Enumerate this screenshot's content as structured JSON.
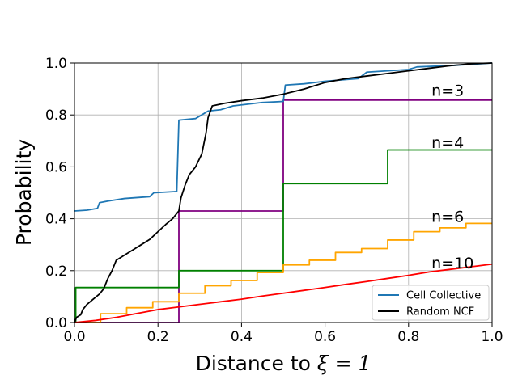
{
  "chart_data": {
    "type": "line",
    "title": "",
    "xlabel_prefix": "Distance to ",
    "xlabel_math": "ξ = 1",
    "ylabel": "Probability",
    "xlim": [
      0,
      1
    ],
    "ylim": [
      0,
      1
    ],
    "xticks": [
      "0.0",
      "0.2",
      "0.4",
      "0.6",
      "0.8",
      "1.0"
    ],
    "yticks": [
      "0.0",
      "0.2",
      "0.4",
      "0.6",
      "0.8",
      "1.0"
    ],
    "grid": true,
    "legend_position": "bottom-right",
    "annotations": [
      {
        "text": "n=3",
        "x": 0.855,
        "y": 0.895
      },
      {
        "text": "n=4",
        "x": 0.855,
        "y": 0.695
      },
      {
        "text": "n=6",
        "x": 0.855,
        "y": 0.41
      },
      {
        "text": "n=10",
        "x": 0.855,
        "y": 0.23
      }
    ],
    "series": [
      {
        "name": "Cell Collective",
        "legend": true,
        "color": "#1f77b4",
        "points": [
          [
            0,
            0.43
          ],
          [
            0.03,
            0.433
          ],
          [
            0.055,
            0.44
          ],
          [
            0.06,
            0.462
          ],
          [
            0.08,
            0.468
          ],
          [
            0.12,
            0.478
          ],
          [
            0.18,
            0.485
          ],
          [
            0.19,
            0.5
          ],
          [
            0.245,
            0.505
          ],
          [
            0.25,
            0.78
          ],
          [
            0.29,
            0.786
          ],
          [
            0.32,
            0.815
          ],
          [
            0.35,
            0.82
          ],
          [
            0.38,
            0.835
          ],
          [
            0.45,
            0.848
          ],
          [
            0.5,
            0.852
          ],
          [
            0.505,
            0.915
          ],
          [
            0.55,
            0.92
          ],
          [
            0.6,
            0.93
          ],
          [
            0.68,
            0.94
          ],
          [
            0.7,
            0.965
          ],
          [
            0.75,
            0.97
          ],
          [
            0.8,
            0.975
          ],
          [
            0.82,
            0.985
          ],
          [
            0.9,
            0.99
          ],
          [
            0.95,
            0.995
          ],
          [
            1.0,
            1.0
          ]
        ]
      },
      {
        "name": "Random NCF",
        "legend": true,
        "color": "#000000",
        "points": [
          [
            0,
            0.0
          ],
          [
            0.005,
            0.02
          ],
          [
            0.015,
            0.03
          ],
          [
            0.02,
            0.05
          ],
          [
            0.03,
            0.07
          ],
          [
            0.045,
            0.09
          ],
          [
            0.06,
            0.11
          ],
          [
            0.07,
            0.13
          ],
          [
            0.08,
            0.17
          ],
          [
            0.09,
            0.2
          ],
          [
            0.1,
            0.24
          ],
          [
            0.12,
            0.26
          ],
          [
            0.14,
            0.28
          ],
          [
            0.16,
            0.3
          ],
          [
            0.18,
            0.32
          ],
          [
            0.2,
            0.35
          ],
          [
            0.22,
            0.38
          ],
          [
            0.235,
            0.4
          ],
          [
            0.25,
            0.43
          ],
          [
            0.255,
            0.48
          ],
          [
            0.265,
            0.53
          ],
          [
            0.275,
            0.57
          ],
          [
            0.29,
            0.6
          ],
          [
            0.305,
            0.65
          ],
          [
            0.315,
            0.73
          ],
          [
            0.32,
            0.79
          ],
          [
            0.33,
            0.835
          ],
          [
            0.36,
            0.845
          ],
          [
            0.4,
            0.855
          ],
          [
            0.45,
            0.865
          ],
          [
            0.5,
            0.88
          ],
          [
            0.55,
            0.9
          ],
          [
            0.6,
            0.925
          ],
          [
            0.65,
            0.94
          ],
          [
            0.7,
            0.95
          ],
          [
            0.75,
            0.96
          ],
          [
            0.8,
            0.97
          ],
          [
            0.85,
            0.98
          ],
          [
            0.9,
            0.99
          ],
          [
            0.95,
            0.997
          ],
          [
            1.0,
            1.0
          ]
        ]
      },
      {
        "name": "n=3",
        "legend": false,
        "color": "#800080",
        "points": [
          [
            0,
            0.0
          ],
          [
            0.25,
            0.0
          ],
          [
            0.25,
            0.43
          ],
          [
            0.5,
            0.43
          ],
          [
            0.5,
            0.857
          ],
          [
            1.0,
            0.857
          ]
        ]
      },
      {
        "name": "n=4",
        "legend": false,
        "color": "#008000",
        "points": [
          [
            0,
            0.0
          ],
          [
            0.003,
            0.0
          ],
          [
            0.003,
            0.135
          ],
          [
            0.25,
            0.135
          ],
          [
            0.25,
            0.2
          ],
          [
            0.5,
            0.2
          ],
          [
            0.5,
            0.535
          ],
          [
            0.75,
            0.535
          ],
          [
            0.75,
            0.665
          ],
          [
            1.0,
            0.665
          ]
        ]
      },
      {
        "name": "n=6",
        "legend": false,
        "color": "#ffa500",
        "points": [
          [
            0,
            0.0
          ],
          [
            0.0625,
            0.0
          ],
          [
            0.0625,
            0.034
          ],
          [
            0.125,
            0.034
          ],
          [
            0.125,
            0.057
          ],
          [
            0.1875,
            0.057
          ],
          [
            0.1875,
            0.08
          ],
          [
            0.25,
            0.08
          ],
          [
            0.25,
            0.113
          ],
          [
            0.3125,
            0.113
          ],
          [
            0.3125,
            0.142
          ],
          [
            0.375,
            0.142
          ],
          [
            0.375,
            0.162
          ],
          [
            0.4375,
            0.162
          ],
          [
            0.4375,
            0.193
          ],
          [
            0.5,
            0.193
          ],
          [
            0.5,
            0.222
          ],
          [
            0.5625,
            0.222
          ],
          [
            0.5625,
            0.24
          ],
          [
            0.625,
            0.24
          ],
          [
            0.625,
            0.27
          ],
          [
            0.6875,
            0.27
          ],
          [
            0.6875,
            0.285
          ],
          [
            0.75,
            0.285
          ],
          [
            0.75,
            0.318
          ],
          [
            0.8125,
            0.318
          ],
          [
            0.8125,
            0.35
          ],
          [
            0.875,
            0.35
          ],
          [
            0.875,
            0.365
          ],
          [
            0.9375,
            0.365
          ],
          [
            0.9375,
            0.382
          ],
          [
            1.0,
            0.382
          ]
        ]
      },
      {
        "name": "n=10",
        "legend": false,
        "color": "#ff0000",
        "points": [
          [
            0,
            0.0
          ],
          [
            0.05,
            0.008
          ],
          [
            0.1,
            0.02
          ],
          [
            0.15,
            0.035
          ],
          [
            0.2,
            0.05
          ],
          [
            0.25,
            0.06
          ],
          [
            0.3,
            0.07
          ],
          [
            0.35,
            0.08
          ],
          [
            0.4,
            0.09
          ],
          [
            0.45,
            0.102
          ],
          [
            0.5,
            0.113
          ],
          [
            0.55,
            0.124
          ],
          [
            0.6,
            0.135
          ],
          [
            0.65,
            0.147
          ],
          [
            0.7,
            0.158
          ],
          [
            0.75,
            0.17
          ],
          [
            0.8,
            0.182
          ],
          [
            0.85,
            0.195
          ],
          [
            0.9,
            0.205
          ],
          [
            0.95,
            0.215
          ],
          [
            1.0,
            0.225
          ]
        ]
      }
    ]
  }
}
